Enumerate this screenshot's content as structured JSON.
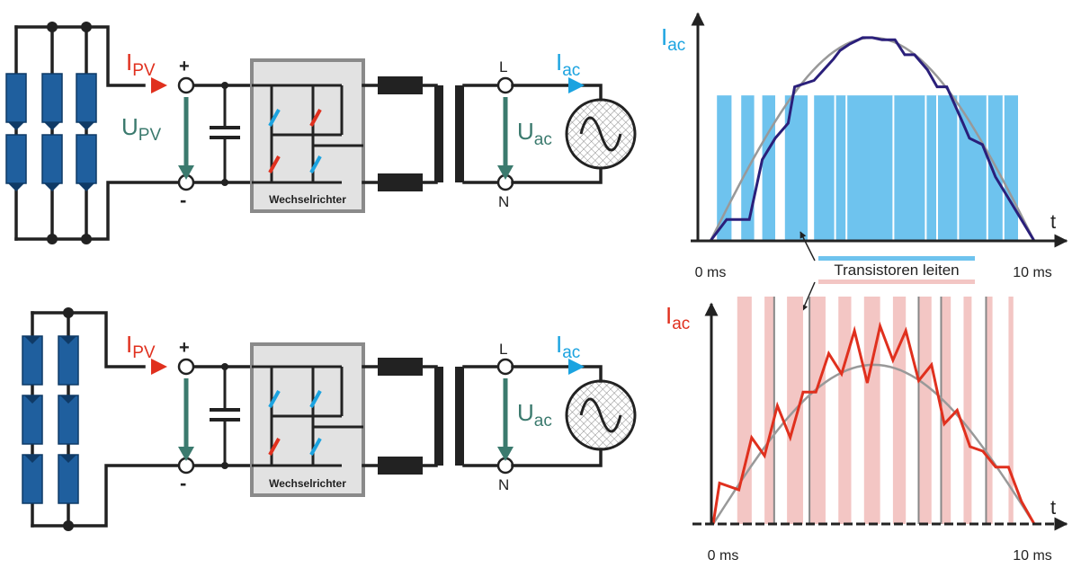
{
  "colors": {
    "pv_current": "#e0301e",
    "ac_current": "#1ba3e0",
    "voltage_arrow": "#3b7a6e",
    "module_blue": "#1f5f9e",
    "module_dark": "#0f3a66",
    "bar_blue": "#6ec3ee",
    "bar_pink": "#f3c6c4",
    "curve_blue": "#2a1f7a",
    "curve_red": "#e0301e",
    "sine_gray": "#999999",
    "inverter_fill": "#e2e2e2",
    "inverter_border": "#8a8a8a"
  },
  "circuits": [
    {
      "name": "top",
      "pv_current": {
        "base": "I",
        "sub": "PV"
      },
      "pv_voltage": {
        "base": "U",
        "sub": "PV"
      },
      "plus": "+",
      "minus": "-",
      "inverter_label": "Wechselrichter",
      "line_L": "L",
      "line_N": "N",
      "ac_current": {
        "base": "I",
        "sub": "ac"
      },
      "ac_voltage": {
        "base": "U",
        "sub": "ac"
      }
    },
    {
      "name": "bottom",
      "pv_current": {
        "base": "I",
        "sub": "PV"
      },
      "pv_voltage": {
        "base": "",
        "sub": ""
      },
      "plus": "+",
      "minus": "-",
      "inverter_label": "Wechselrichter",
      "line_L": "L",
      "line_N": "N",
      "ac_current": {
        "base": "I",
        "sub": "ac"
      },
      "ac_voltage": {
        "base": "U",
        "sub": "ac"
      }
    }
  ],
  "legend": {
    "text": "Transistoren leiten"
  },
  "chart_data": [
    {
      "type": "area",
      "ylabel": {
        "base": "I",
        "sub": "ac"
      },
      "xlabel": "t",
      "x_start_label": "0 ms",
      "x_end_label": "10 ms",
      "xlim": [
        0,
        10
      ],
      "ylim": [
        0,
        1
      ],
      "sine_reference": {
        "period_half_ms": 10,
        "peak": 0.95
      },
      "conduction_bars_ms": [
        [
          0.2,
          0.65
        ],
        [
          0.95,
          1.35
        ],
        [
          1.6,
          2.0
        ],
        [
          2.3,
          3.0
        ],
        [
          3.2,
          9.5
        ]
      ],
      "conduction_gaps_ms": [
        3.85,
        4.2,
        5.65,
        6.65,
        7.0,
        7.65,
        8.55,
        9.05
      ],
      "conduction_level": 0.68,
      "series": [
        {
          "x": [
            0,
            0.5,
            1.2,
            1.6,
            2.0,
            2.4,
            2.6,
            3.2,
            3.5,
            3.8,
            4.0,
            4.3,
            4.7,
            5.0,
            5.3,
            5.7,
            6.0,
            6.3,
            6.7,
            7.0,
            7.3,
            7.8,
            8.0,
            8.4,
            8.8,
            9.2,
            9.6,
            10
          ],
          "y": [
            0,
            0.1,
            0.1,
            0.38,
            0.48,
            0.55,
            0.72,
            0.75,
            0.8,
            0.85,
            0.89,
            0.92,
            0.95,
            0.95,
            0.94,
            0.94,
            0.87,
            0.87,
            0.8,
            0.72,
            0.72,
            0.55,
            0.48,
            0.45,
            0.3,
            0.2,
            0.1,
            0
          ]
        }
      ]
    },
    {
      "type": "area",
      "ylabel": {
        "base": "I",
        "sub": "ac"
      },
      "xlabel": "t",
      "x_start_label": "0 ms",
      "x_end_label": "10 ms",
      "xlim": [
        0,
        10
      ],
      "ylim": [
        0,
        1
      ],
      "sine_reference": {
        "period_half_ms": 10,
        "peak": 0.7
      },
      "pulse_bars_ms": [
        [
          0.75,
          1.2
        ],
        [
          1.6,
          1.9
        ],
        [
          2.3,
          2.8
        ],
        [
          3.0,
          3.5
        ],
        [
          3.9,
          4.3
        ],
        [
          4.7,
          5.2
        ],
        [
          5.6,
          6.0
        ],
        [
          6.4,
          6.8
        ],
        [
          7.1,
          7.4
        ],
        [
          7.8,
          8.05
        ],
        [
          8.5,
          8.7
        ],
        [
          9.2,
          9.35
        ]
      ],
      "pulse_lines_ms": [
        1.9,
        3.0,
        6.4,
        7.1,
        8.5
      ],
      "series": [
        {
          "x": [
            0,
            0.2,
            0.8,
            1.2,
            1.6,
            2.0,
            2.4,
            2.8,
            3.2,
            3.6,
            4.0,
            4.4,
            4.8,
            5.2,
            5.6,
            6.0,
            6.4,
            6.8,
            7.2,
            7.6,
            8.0,
            8.4,
            8.8,
            9.2,
            9.6,
            10
          ],
          "y": [
            0,
            0.18,
            0.15,
            0.38,
            0.3,
            0.52,
            0.38,
            0.58,
            0.58,
            0.75,
            0.66,
            0.85,
            0.62,
            0.87,
            0.72,
            0.85,
            0.63,
            0.7,
            0.44,
            0.5,
            0.34,
            0.32,
            0.25,
            0.25,
            0.1,
            0
          ]
        }
      ]
    }
  ]
}
